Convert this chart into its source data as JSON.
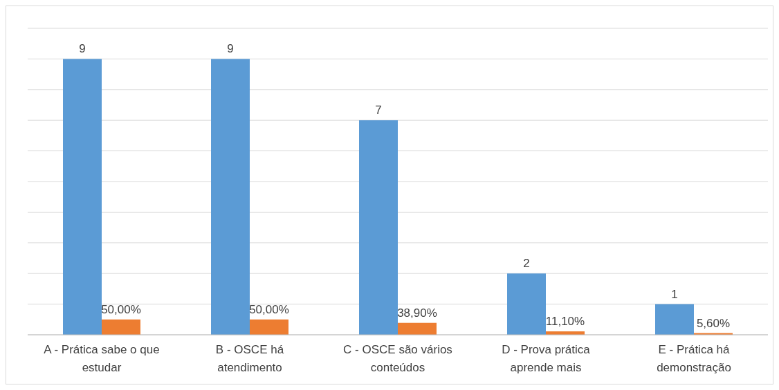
{
  "chart_data": {
    "type": "bar",
    "categories": [
      "A - Prática sabe o que estudar",
      "B - OSCE há atendimento",
      "C - OSCE são vários conteúdos",
      "D - Prova prática aprende mais",
      "E - Prática há demonstração"
    ],
    "series": [
      {
        "color": "#5b9bd5",
        "values": [
          9,
          9,
          7,
          2,
          1
        ],
        "value_labels": [
          "9",
          "9",
          "7",
          "2",
          "1"
        ]
      },
      {
        "color": "#ed7d31",
        "values": [
          0.5,
          0.5,
          0.389,
          0.111,
          0.056
        ],
        "value_labels": [
          "50,00%",
          "50,00%",
          "38,90%",
          "11,10%",
          "5,60%"
        ]
      }
    ],
    "ylim": [
      0,
      10
    ],
    "yticks": [
      {
        "value": 0,
        "label": null
      },
      {
        "value": 1,
        "label": null
      },
      {
        "value": 2,
        "label": null
      },
      {
        "value": 3,
        "label": null
      },
      {
        "value": 4,
        "label": null
      },
      {
        "value": 5,
        "label": null
      },
      {
        "value": 6,
        "label": null
      },
      {
        "value": 7,
        "label": null
      },
      {
        "value": 8,
        "label": null
      },
      {
        "value": 9,
        "label": null
      },
      {
        "value": 10,
        "label": null
      }
    ],
    "grid": "y",
    "tick_labels": "x"
  }
}
